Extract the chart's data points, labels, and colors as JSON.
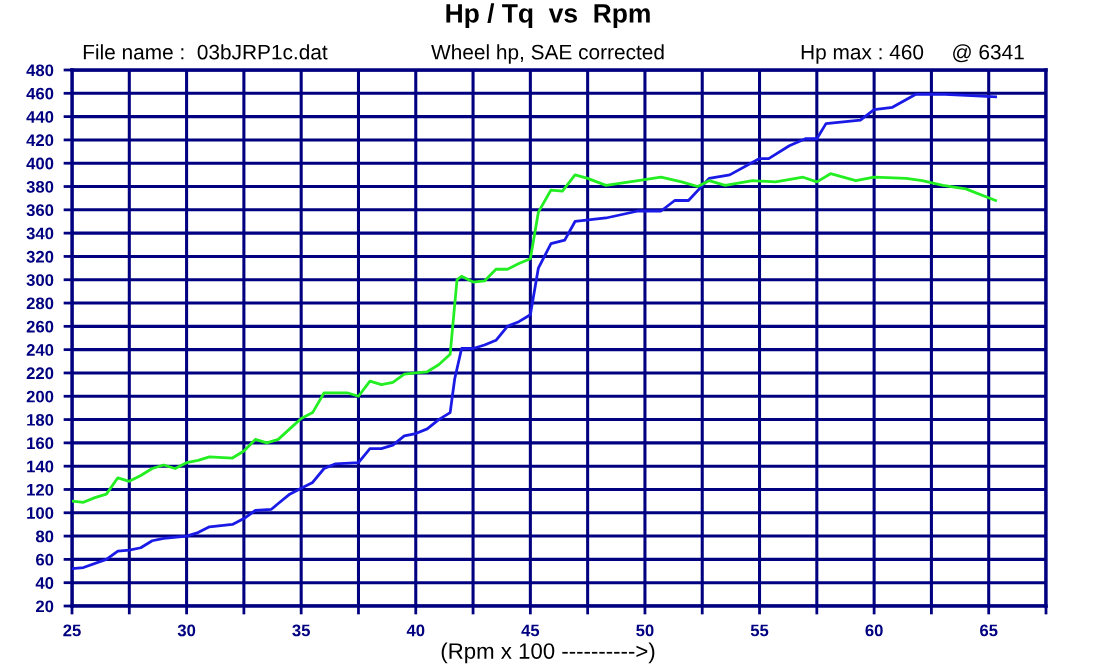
{
  "chart_data": {
    "type": "line",
    "title": "Hp / Tq  vs  Rpm",
    "subtitle": "Wheel hp, SAE corrected",
    "xlabel": "(Rpm x 100 ---------->)",
    "annotations": [
      "File name :  03bJRP1c.dat",
      "Hp max : 460",
      "@ 6341"
    ],
    "series": [
      {
        "color": "#1a1ae6",
        "x": [
          25,
          25.5,
          26.5,
          27,
          27.5,
          28,
          28.5,
          29,
          30,
          30.5,
          31,
          32,
          32.5,
          33,
          33.7,
          34,
          34.5,
          35,
          35.5,
          36,
          36.5,
          37.5,
          38,
          38.5,
          39,
          39.5,
          40,
          40.5,
          41,
          41.5,
          41.7,
          42,
          42.5,
          43,
          43.5,
          44,
          44.5,
          45,
          45.35,
          45.9,
          46.5,
          46.95,
          48.3,
          49.7,
          50.7,
          51.3,
          51.9,
          52.8,
          53.7,
          55,
          55.4,
          56.3,
          57,
          57.5,
          57.9,
          59.4,
          60,
          60.8,
          61.8,
          63.1,
          65.3
        ],
        "values": [
          52,
          53,
          60,
          67,
          68,
          70,
          76,
          78,
          80,
          83,
          88,
          90,
          95,
          102,
          103,
          108,
          116,
          121,
          126,
          138,
          142,
          143,
          155,
          155,
          158,
          166,
          168,
          172,
          180,
          186,
          215,
          241,
          241,
          244,
          248,
          260,
          264,
          270,
          310,
          331,
          334,
          350,
          353,
          359,
          359,
          368,
          368,
          387,
          390,
          404,
          404,
          415,
          421,
          421,
          434,
          437,
          446,
          448,
          459,
          459,
          457
        ]
      },
      {
        "color": "#22ee22",
        "x": [
          25,
          25.5,
          26,
          26.5,
          27,
          27.5,
          28,
          28.5,
          29,
          29.5,
          30,
          30.5,
          31,
          32,
          32.5,
          33,
          33.5,
          34,
          34.5,
          35,
          35.5,
          36,
          37,
          37.5,
          38,
          38.5,
          39,
          39.5,
          40,
          40.5,
          41,
          41.5,
          41.8,
          42,
          42.5,
          43,
          43.5,
          44,
          44.5,
          45,
          45.35,
          45.9,
          46.4,
          46.95,
          47.5,
          48.3,
          49.7,
          50.7,
          51.6,
          52.3,
          52.8,
          53.5,
          54.7,
          55.7,
          56.9,
          57.5,
          58.1,
          59.2,
          60,
          61.4,
          62.1,
          63,
          64,
          65.3
        ],
        "values": [
          110,
          109,
          113,
          116,
          130,
          127,
          132,
          138,
          141,
          138,
          143,
          145,
          148,
          147,
          153,
          163,
          160,
          163,
          172,
          181,
          186,
          203,
          203,
          200,
          213,
          210,
          212,
          219,
          220,
          221,
          227,
          236,
          300,
          303,
          298,
          299,
          309,
          309,
          314,
          318,
          358,
          377,
          376,
          390,
          387,
          381,
          385,
          388,
          384,
          380,
          385,
          381,
          385,
          384,
          388,
          384,
          391,
          385,
          388,
          387,
          385,
          381,
          378,
          368
        ]
      }
    ],
    "xlim": [
      25,
      67.5
    ],
    "xticks": [
      25,
      {
        "value": 27.5,
        "label": null
      },
      30,
      {
        "value": 32.5,
        "label": null
      },
      35,
      {
        "value": 37.5,
        "label": null
      },
      40,
      {
        "value": 42.5,
        "label": null
      },
      45,
      {
        "value": 47.5,
        "label": null
      },
      50,
      {
        "value": 52.5,
        "label": null
      },
      55,
      {
        "value": 57.5,
        "label": null
      },
      60,
      {
        "value": 62.5,
        "label": null
      },
      65,
      {
        "value": 67.5,
        "label": null
      }
    ],
    "ylim": [
      20,
      480
    ],
    "yticks": [
      20,
      40,
      60,
      80,
      100,
      120,
      140,
      160,
      180,
      200,
      220,
      240,
      260,
      280,
      300,
      320,
      340,
      360,
      380,
      400,
      420,
      440,
      460,
      480
    ],
    "grid": true,
    "line_style": "solid",
    "marker": "none"
  }
}
